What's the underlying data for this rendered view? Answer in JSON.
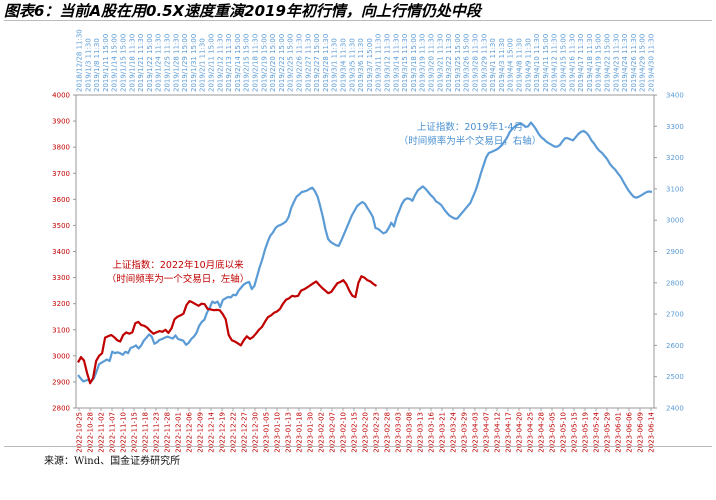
{
  "title": "图表6：当前A股在用0.5X速度重演2019年初行情，向上行情仍处中段",
  "source": "来源：Wind、国金证券研究所",
  "chart_data": {
    "type": "line",
    "left_axis": {
      "ylim": [
        2800,
        4000
      ],
      "ticks": [
        2800,
        2900,
        3000,
        3100,
        3200,
        3300,
        3400,
        3500,
        3600,
        3700,
        3800,
        3900,
        4000
      ],
      "color": "#c00000"
    },
    "right_axis": {
      "ylim": [
        2400,
        3400
      ],
      "ticks": [
        2400,
        2500,
        2600,
        2700,
        2800,
        2900,
        3000,
        3100,
        3200,
        3300,
        3400
      ],
      "color": "#5b9bd5"
    },
    "bottom_ticks": [
      "2022-10-25",
      "2022-10-28",
      "2022-11-02",
      "2022-11-07",
      "2022-11-10",
      "2022-11-15",
      "2022-11-18",
      "2022-11-23",
      "2022-11-28",
      "2022-12-01",
      "2022-12-06",
      "2022-12-09",
      "2022-12-14",
      "2022-12-19",
      "2022-12-22",
      "2022-12-27",
      "2022-12-30",
      "2023-01-05",
      "2023-01-10",
      "2023-01-13",
      "2023-01-18",
      "2023-01-30",
      "2023-02-02",
      "2023-02-07",
      "2023-02-10",
      "2023-02-15",
      "2023-02-20",
      "2023-02-23",
      "2023-02-28",
      "2023-03-03",
      "2023-03-08",
      "2023-03-13",
      "2023-03-16",
      "2023-03-21",
      "2023-03-24",
      "2023-03-29",
      "2023-04-03",
      "2023-04-07",
      "2023-04-12",
      "2023-04-17",
      "2023-04-20",
      "2023-04-25",
      "2023-04-28",
      "2023-05-05",
      "2023-05-10",
      "2023-05-15",
      "2023-05-19",
      "2023-05-24",
      "2023-05-29",
      "2023-06-01",
      "2023-06-06",
      "2023-06-09",
      "2023-06-14"
    ],
    "top_ticks": [
      "2018/12/28 11:30",
      "2019/1/3 11:30",
      "2019/1/8 11:30",
      "2019/1/11 15:00",
      "2019/1/14 15:00",
      "2019/1/15 15:00",
      "2019/1/18 11:30",
      "2019/1/21 11:30",
      "2019/1/22 15:00",
      "2019/1/24 11:30",
      "2019/1/25 11:30",
      "2019/1/28 11:30",
      "2019/1/29 15:00",
      "2019/1/31 15:00",
      "2019/2/1 11:30",
      "2019/2/11 15:00",
      "2019/2/12 11:30",
      "2019/2/13 11:30",
      "2019/2/14 15:00",
      "2019/2/15 15:00",
      "2019/2/18 11:30",
      "2019/2/19 15:00",
      "2019/2/20 15:00",
      "2019/2/22 15:00",
      "2019/2/25 15:00",
      "2019/2/26 11:30",
      "2019/2/27 11:30",
      "2019/2/27 15:00",
      "2019/2/28 11:30",
      "2019/3/1 11:30",
      "2019/3/4 11:30",
      "2019/3/5 11:30",
      "2019/3/6 11:30",
      "2019/3/7 15:00",
      "2019/3/11 11:30",
      "2019/3/12 11:30",
      "2019/3/14 11:30",
      "2019/3/15 11:30",
      "2019/3/18 15:00",
      "2019/3/19 11:30",
      "2019/3/20 11:30",
      "2019/3/21 11:30",
      "2019/3/22 11:30",
      "2019/3/25 15:00",
      "2019/3/26 15:00",
      "2019/3/28 11:30",
      "2019/3/29 11:30",
      "2019/4/1 11:30",
      "2019/4/3 11:30",
      "2019/4/4 15:00",
      "2019/4/8 11:30",
      "2019/4/9 11:30",
      "2019/4/10 11:30",
      "2019/4/11 15:00",
      "2019/4/12 11:30",
      "2019/4/15 15:00",
      "2019/4/16 11:30",
      "2019/4/17 11:30",
      "2019/4/18 11:30",
      "2019/4/19 15:00",
      "2019/4/22 15:00",
      "2019/4/23 11:30",
      "2019/4/24 11:30",
      "2019/4/26 11:30",
      "2019/4/29 15:00",
      "2019/4/30 11:30"
    ],
    "series": [
      {
        "name": "上证指数：2022年10月底以来",
        "axis": "left",
        "color": "#c00000",
        "values": [
          2975,
          2995,
          2982,
          2935,
          2895,
          2915,
          2980,
          3000,
          3010,
          3070,
          3075,
          3080,
          3072,
          3060,
          3055,
          3080,
          3090,
          3085,
          3090,
          3125,
          3130,
          3118,
          3115,
          3108,
          3095,
          3085,
          3090,
          3095,
          3092,
          3100,
          3088,
          3105,
          3140,
          3150,
          3155,
          3162,
          3195,
          3210,
          3205,
          3198,
          3192,
          3200,
          3198,
          3180,
          3178,
          3175,
          3176,
          3175,
          3160,
          3140,
          3080,
          3060,
          3055,
          3048,
          3040,
          3060,
          3075,
          3065,
          3072,
          3085,
          3100,
          3110,
          3130,
          3148,
          3155,
          3165,
          3170,
          3180,
          3200,
          3215,
          3220,
          3230,
          3228,
          3230,
          3250,
          3255,
          3262,
          3270,
          3278,
          3285,
          3272,
          3260,
          3250,
          3240,
          3245,
          3262,
          3278,
          3283,
          3290,
          3275,
          3250,
          3230,
          3225,
          3280,
          3305,
          3300,
          3290,
          3285,
          3275,
          3268
        ]
      },
      {
        "name": "上证指数：2019年1-4月",
        "axis": "right",
        "color": "#5b9bd5",
        "values": [
          2505,
          2495,
          2485,
          2488,
          2490,
          2485,
          2495,
          2515,
          2540,
          2545,
          2550,
          2555,
          2550,
          2580,
          2575,
          2578,
          2575,
          2570,
          2580,
          2575,
          2592,
          2595,
          2600,
          2590,
          2600,
          2615,
          2625,
          2635,
          2628,
          2605,
          2610,
          2618,
          2620,
          2625,
          2628,
          2625,
          2622,
          2632,
          2620,
          2618,
          2615,
          2602,
          2608,
          2620,
          2628,
          2640,
          2662,
          2675,
          2682,
          2705,
          2720,
          2740,
          2735,
          2740,
          2722,
          2745,
          2750,
          2755,
          2753,
          2762,
          2760,
          2775,
          2785,
          2795,
          2800,
          2803,
          2780,
          2790,
          2820,
          2850,
          2875,
          2905,
          2930,
          2950,
          2960,
          2975,
          2982,
          2985,
          2990,
          2996,
          3010,
          3040,
          3058,
          3075,
          3082,
          3090,
          3092,
          3095,
          3100,
          3104,
          3092,
          3075,
          3045,
          3010,
          2970,
          2940,
          2930,
          2925,
          2920,
          2918,
          2935,
          2955,
          2975,
          2995,
          3015,
          3030,
          3045,
          3052,
          3058,
          3052,
          3038,
          3025,
          3010,
          2975,
          2972,
          2965,
          2958,
          2962,
          2975,
          2992,
          2980,
          3010,
          3030,
          3052,
          3065,
          3070,
          3068,
          3062,
          3080,
          3095,
          3102,
          3108,
          3100,
          3090,
          3080,
          3072,
          3060,
          3055,
          3048,
          3035,
          3025,
          3015,
          3010,
          3005,
          3005,
          3015,
          3025,
          3035,
          3045,
          3055,
          3075,
          3095,
          3120,
          3150,
          3175,
          3200,
          3215,
          3218,
          3222,
          3226,
          3232,
          3240,
          3252,
          3265,
          3282,
          3292,
          3300,
          3305,
          3310,
          3305,
          3298,
          3300,
          3312,
          3302,
          3290,
          3275,
          3265,
          3258,
          3250,
          3245,
          3240,
          3235,
          3235,
          3240,
          3252,
          3262,
          3262,
          3258,
          3255,
          3265,
          3275,
          3282,
          3285,
          3280,
          3270,
          3255,
          3245,
          3232,
          3222,
          3215,
          3205,
          3195,
          3180,
          3170,
          3162,
          3150,
          3140,
          3125,
          3110,
          3096,
          3085,
          3075,
          3072,
          3075,
          3080,
          3085,
          3090,
          3092,
          3090
        ]
      }
    ],
    "annotations": [
      {
        "series": 0,
        "lines": [
          "上证指数：2022年10月底以来",
          "（时间频率为一个交易日，左轴）"
        ]
      },
      {
        "series": 1,
        "lines": [
          "上证指数：2019年1-4月",
          "（时间频率为半个交易日，右轴）"
        ]
      }
    ],
    "grid": false,
    "legend": "none"
  }
}
